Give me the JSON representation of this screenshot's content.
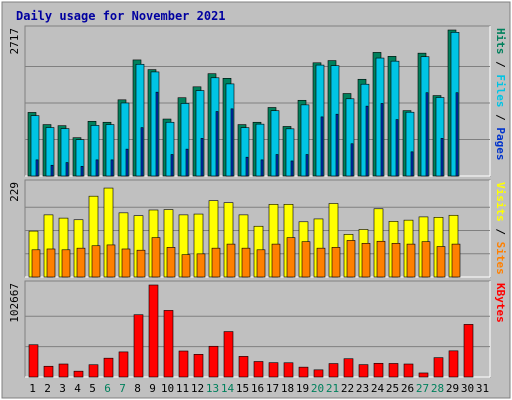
{
  "chart_data": {
    "type": "bar",
    "title": "Daily usage for November 2021",
    "categories": [
      "1",
      "2",
      "3",
      "4",
      "5",
      "6",
      "7",
      "8",
      "9",
      "10",
      "11",
      "12",
      "13",
      "14",
      "15",
      "16",
      "17",
      "18",
      "19",
      "20",
      "21",
      "22",
      "23",
      "24",
      "25",
      "26",
      "27",
      "28",
      "29",
      "30",
      "31"
    ],
    "weekend_days": [
      "6",
      "7",
      "13",
      "14",
      "20",
      "21",
      "27",
      "28"
    ],
    "panels": [
      {
        "id": "hits",
        "ymax_label": "2717",
        "ylim": [
          0,
          2717
        ],
        "ylabel_parts": [
          "Pages",
          "Files",
          "Hits"
        ],
        "series": [
          {
            "name": "Hits",
            "color": "#00805c",
            "values": [
              1183,
              957,
              937,
              713,
              1018,
              1000,
              1418,
              2160,
              1980,
              1060,
              1457,
              1660,
              1904,
              1818,
              957,
              1000,
              1275,
              922,
              1409,
              2107,
              2148,
              1535,
              1800,
              2300,
              2227,
              1217,
              2286,
              1497,
              2717
            ]
          },
          {
            "name": "Files",
            "color": "#00c4e4",
            "values": [
              1123,
              902,
              882,
              676,
              941,
              957,
              1359,
              2079,
              1937,
              1000,
              1350,
              1590,
              1828,
              1714,
              900,
              965,
              1215,
              878,
              1324,
              2064,
              2053,
              1437,
              1708,
              2195,
              2137,
              1187,
              2220,
              1461,
              2674
            ]
          },
          {
            "name": "Pages",
            "color": "#0033cc",
            "values": [
              300,
              200,
              250,
              180,
              300,
              300,
              500,
              900,
              1560,
              400,
              500,
              700,
              1200,
              1250,
              350,
              300,
              400,
              280,
              400,
              1100,
              1150,
              600,
              1300,
              1350,
              1050,
              450,
              1550,
              700,
              1550
            ]
          }
        ],
        "grid_fractions": [
          0.25,
          0.5,
          0.75
        ]
      },
      {
        "id": "visits",
        "ymax_label": "229",
        "ylim": [
          0,
          229
        ],
        "ylabel_parts": [
          "Sites",
          "Visits"
        ],
        "series": [
          {
            "name": "Visits",
            "color": "#ffff00",
            "values": [
              113,
              153,
              145,
              141,
              199,
              219,
              158,
              151,
              165,
              166,
              153,
              155,
              188,
              183,
              153,
              125,
              179,
              179,
              136,
              143,
              181,
              105,
              117,
              168,
              137,
              140,
              148,
              147,
              152
            ]
          },
          {
            "name": "Sites",
            "color": "#ff8000",
            "values": [
              67,
              69,
              67,
              71,
              77,
              79,
              69,
              66,
              97,
              73,
              55,
              57,
              71,
              81,
              71,
              67,
              81,
              97,
              87,
              71,
              73,
              90,
              83,
              88,
              83,
              81,
              87,
              75,
              81
            ]
          }
        ],
        "grid_fractions": [
          0.25,
          0.5,
          0.75
        ]
      },
      {
        "id": "kbytes",
        "ymax_label": "102667",
        "ylim": [
          0,
          102667
        ],
        "ylabel_parts": [
          "KBytes"
        ],
        "series": [
          {
            "name": "KBytes",
            "color": "#ff0000",
            "values": [
              36000,
              12000,
              14500,
              6500,
              13700,
              21000,
              28000,
              69500,
              102667,
              74300,
              29000,
              25300,
              34300,
              50700,
              23000,
              17300,
              16000,
              15900,
              11000,
              8000,
              15000,
              20400,
              13800,
              15300,
              15100,
              14500,
              4500,
              21600,
              29200,
              58700
            ]
          }
        ],
        "grid_fractions": [
          0.33,
          0.66
        ]
      }
    ]
  }
}
